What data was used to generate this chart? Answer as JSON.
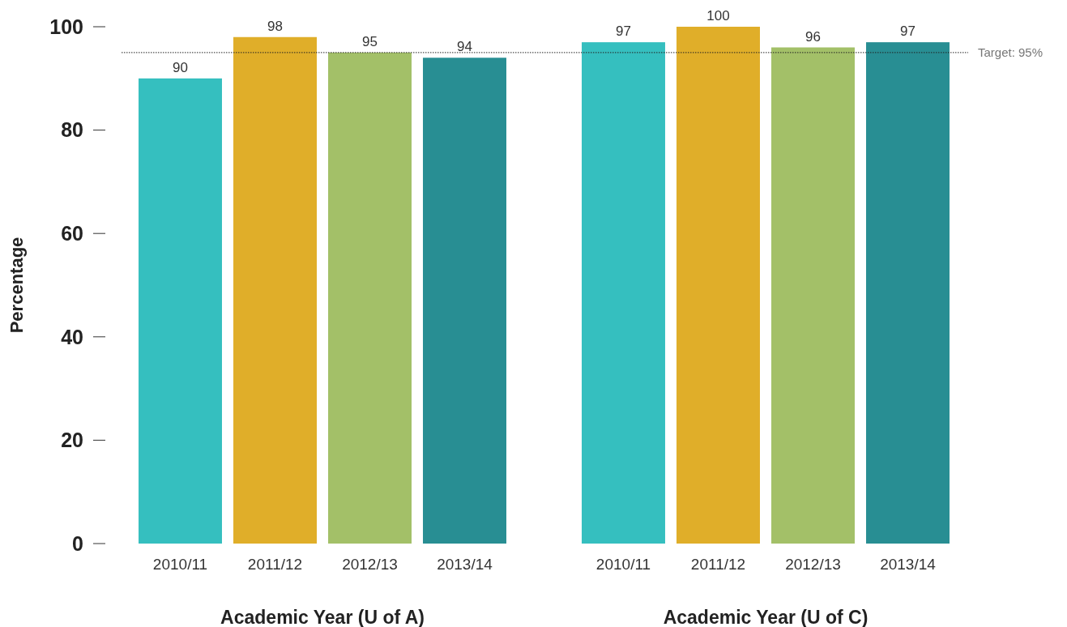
{
  "chart_data": [
    {
      "type": "bar",
      "categories": [
        "2010/11",
        "2011/12",
        "2012/13",
        "2013/14"
      ],
      "values": [
        90,
        98,
        95,
        94
      ],
      "colors": [
        "#35bfbf",
        "#e0ae29",
        "#a3c068",
        "#288e93"
      ],
      "ylim": [
        0,
        100
      ],
      "yticks": [
        0,
        20,
        40,
        60,
        80,
        100
      ],
      "ylabel": "Percentage",
      "xlabel": "Academic Year (U of A)",
      "data_labels": true,
      "ref_lines": [
        {
          "axis": "y",
          "value": 95,
          "color": "#222222",
          "line_style": "dotted"
        }
      ]
    },
    {
      "type": "bar",
      "categories": [
        "2010/11",
        "2011/12",
        "2012/13",
        "2013/14"
      ],
      "values": [
        97,
        100,
        96,
        97
      ],
      "colors": [
        "#35bfbf",
        "#e0ae29",
        "#a3c068",
        "#288e93"
      ],
      "ylim": [
        0,
        100
      ],
      "tick_labels": "x",
      "xlabel": "Academic Year (U of C)",
      "data_labels": true,
      "ref_lines": [
        {
          "axis": "y",
          "value": 95,
          "label": "Target: 95%",
          "color": "#222222",
          "line_style": "dotted"
        }
      ]
    }
  ]
}
